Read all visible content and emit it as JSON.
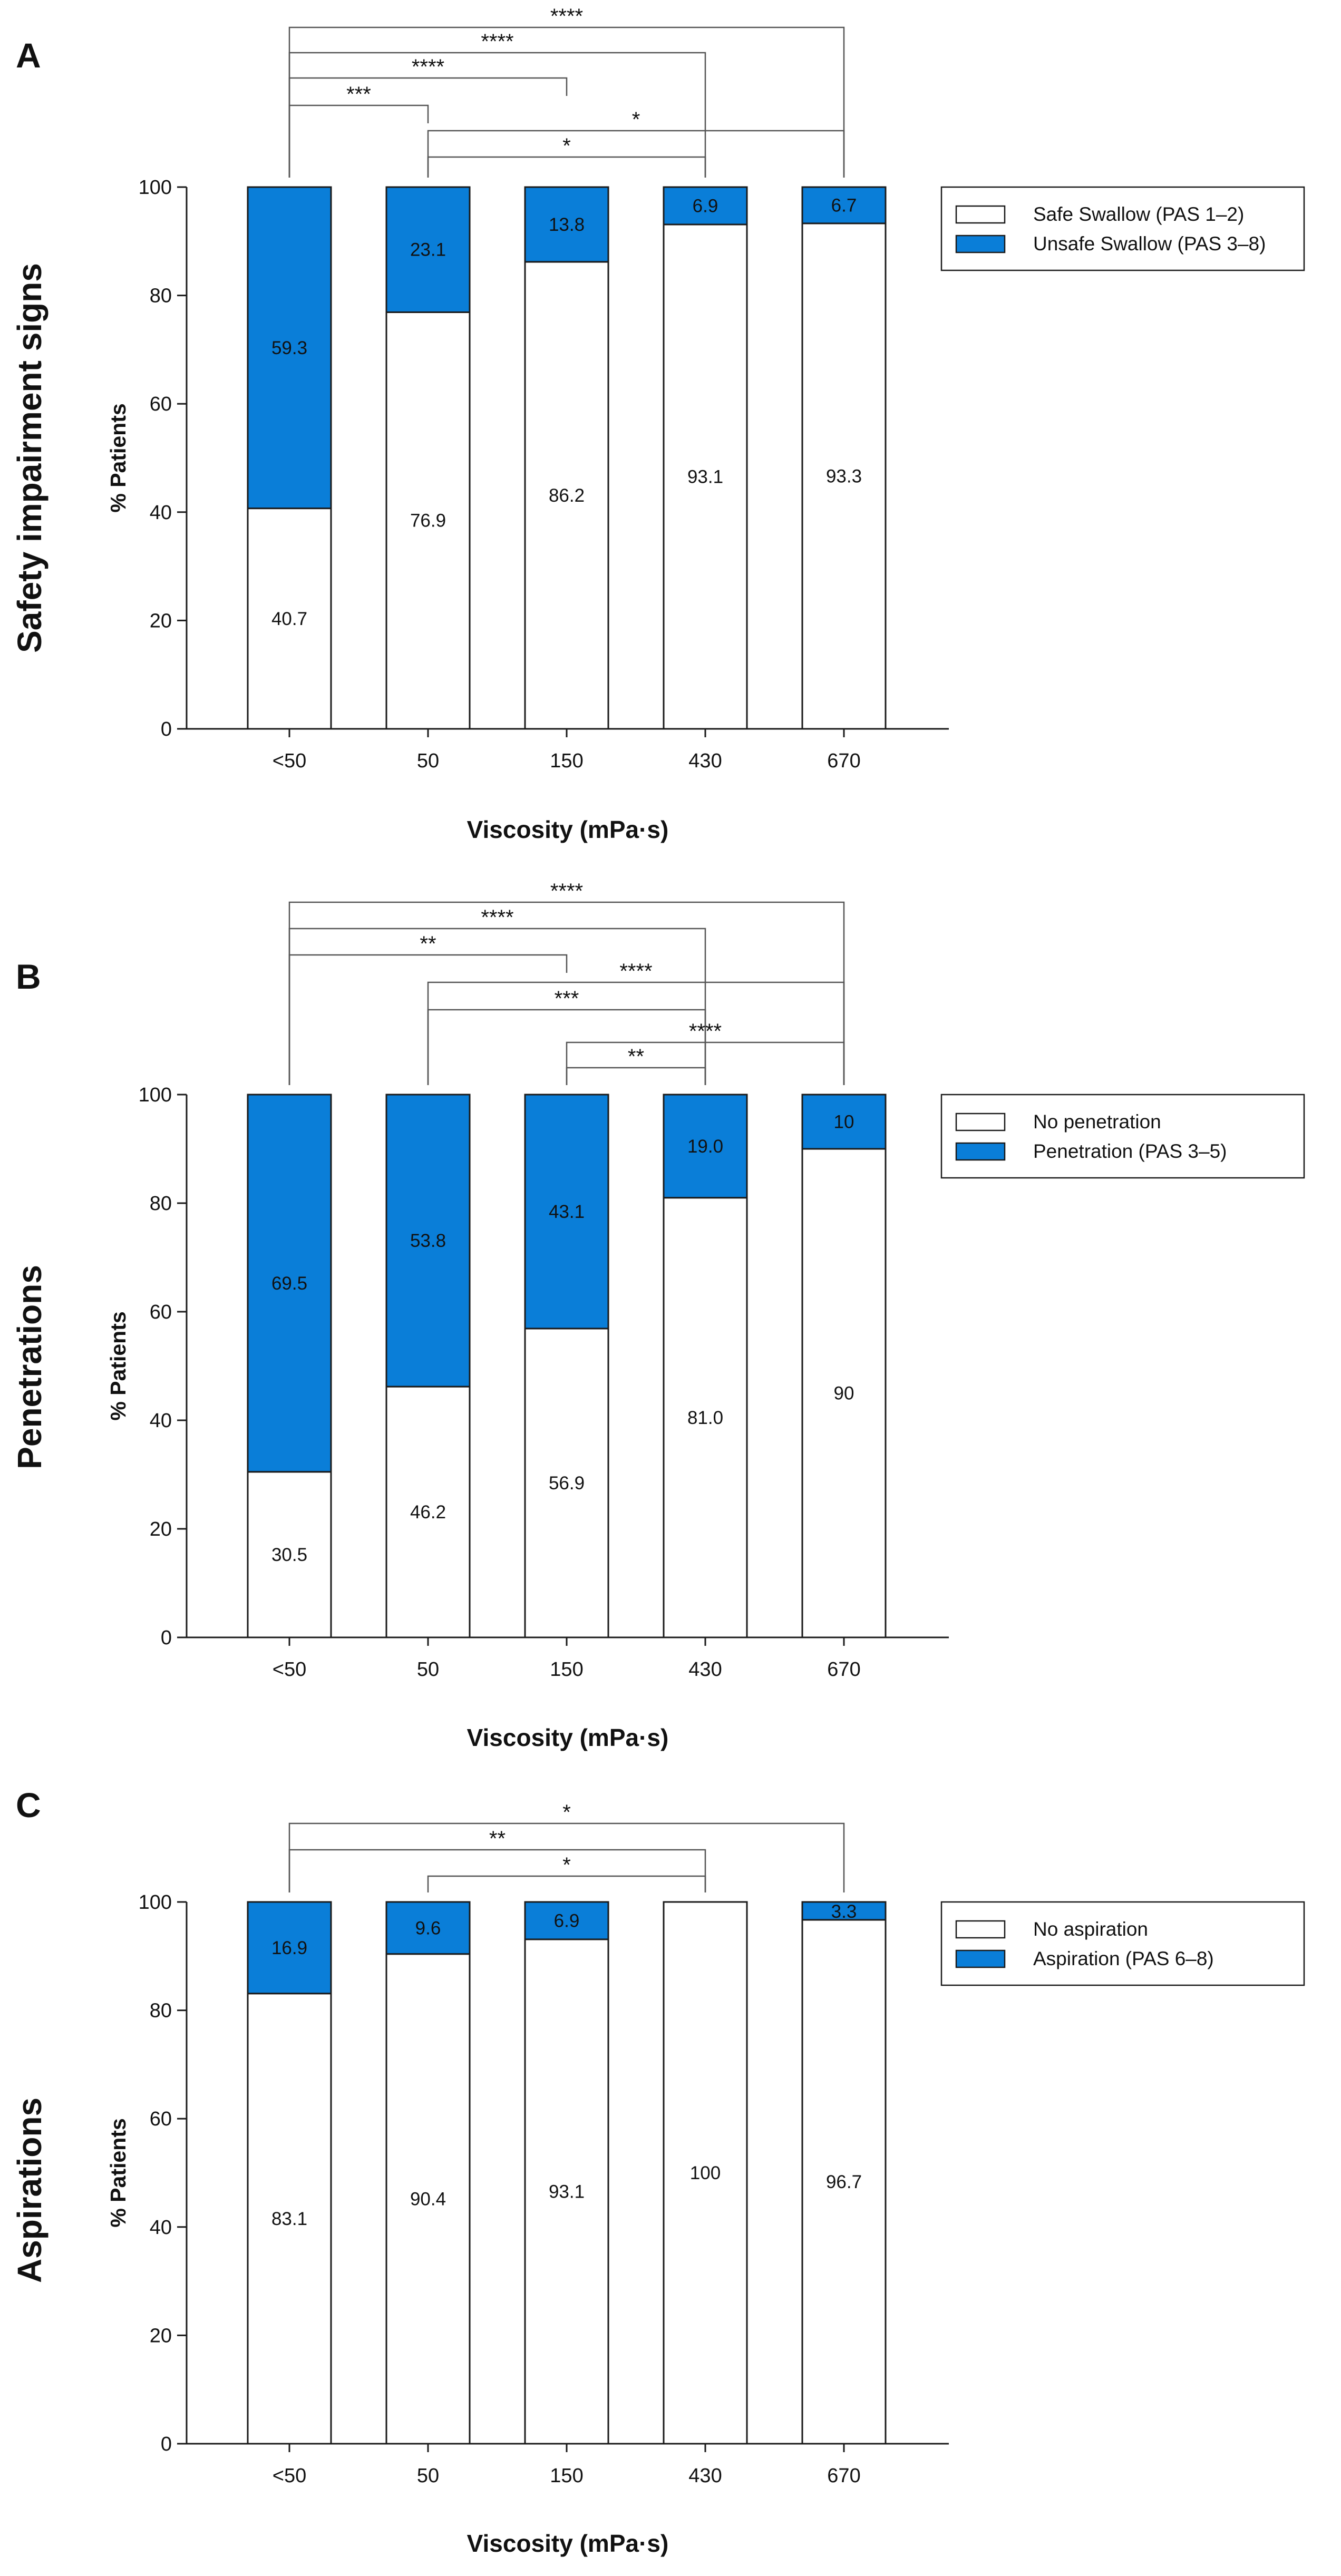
{
  "colors": {
    "safe": "#ffffff",
    "unsafe": "#0a7ed8",
    "outline": "#1a1a1a",
    "bracket": "#555555"
  },
  "chart_data": [
    {
      "type": "bar",
      "stacked": true,
      "panel": "A",
      "row_label": "Safety impairment signs",
      "xlabel": "Viscosity (mPa·s)",
      "ylabel": "% Patients",
      "ylim": [
        0,
        100
      ],
      "yticks": [
        0,
        20,
        40,
        60,
        80,
        100
      ],
      "categories": [
        "<50",
        "50",
        "150",
        "430",
        "670"
      ],
      "series": [
        {
          "name": "Safe Swallow (PAS 1–2)",
          "values": [
            40.7,
            76.9,
            86.2,
            93.1,
            93.3
          ],
          "labels": [
            "40.7",
            "76.9",
            "86.2",
            "93.1",
            "93.3"
          ]
        },
        {
          "name": "Unsafe Swallow (PAS 3–8)",
          "values": [
            59.3,
            23.1,
            13.8,
            6.9,
            6.7
          ],
          "labels": [
            "59.3",
            "23.1",
            "13.8",
            "6.9",
            "6.7"
          ]
        }
      ],
      "legend": "right",
      "comparisons": [
        {
          "from": 0,
          "to": 4,
          "stars": "****"
        },
        {
          "from": 0,
          "to": 3,
          "stars": "****"
        },
        {
          "from": 0,
          "to": 2,
          "stars": "****"
        },
        {
          "from": 0,
          "to": 1,
          "stars": "***"
        },
        {
          "from": 1,
          "to": 4,
          "stars": "*"
        },
        {
          "from": 1,
          "to": 3,
          "stars": "*"
        }
      ]
    },
    {
      "type": "bar",
      "stacked": true,
      "panel": "B",
      "row_label": "Penetrations",
      "xlabel": "Viscosity (mPa·s)",
      "ylabel": "% Patients",
      "ylim": [
        0,
        100
      ],
      "yticks": [
        0,
        20,
        40,
        60,
        80,
        100
      ],
      "categories": [
        "<50",
        "50",
        "150",
        "430",
        "670"
      ],
      "series": [
        {
          "name": "No penetration",
          "values": [
            30.5,
            46.2,
            56.9,
            81.0,
            90
          ],
          "labels": [
            "30.5",
            "46.2",
            "56.9",
            "81.0",
            "90"
          ]
        },
        {
          "name": "Penetration (PAS 3–5)",
          "values": [
            69.5,
            53.8,
            43.1,
            19.0,
            10
          ],
          "labels": [
            "69.5",
            "53.8",
            "43.1",
            "19.0",
            "10"
          ]
        }
      ],
      "legend": "right",
      "comparisons": [
        {
          "from": 0,
          "to": 4,
          "stars": "****"
        },
        {
          "from": 0,
          "to": 3,
          "stars": "****"
        },
        {
          "from": 0,
          "to": 2,
          "stars": "**"
        },
        {
          "from": 1,
          "to": 4,
          "stars": "****"
        },
        {
          "from": 1,
          "to": 3,
          "stars": "***"
        },
        {
          "from": 2,
          "to": 4,
          "stars": "****"
        },
        {
          "from": 2,
          "to": 3,
          "stars": "**"
        }
      ]
    },
    {
      "type": "bar",
      "stacked": true,
      "panel": "C",
      "row_label": "Aspirations",
      "xlabel": "Viscosity (mPa·s)",
      "ylabel": "% Patients",
      "ylim": [
        0,
        100
      ],
      "yticks": [
        0,
        20,
        40,
        60,
        80,
        100
      ],
      "categories": [
        "<50",
        "50",
        "150",
        "430",
        "670"
      ],
      "series": [
        {
          "name": "No aspiration",
          "values": [
            83.1,
            90.4,
            93.1,
            100,
            96.7
          ],
          "labels": [
            "83.1",
            "90.4",
            "93.1",
            "100",
            "96.7"
          ]
        },
        {
          "name": "Aspiration (PAS 6–8)",
          "values": [
            16.9,
            9.6,
            6.9,
            0,
            3.3
          ],
          "labels": [
            "16.9",
            "9.6",
            "6.9",
            "",
            "3.3"
          ]
        }
      ],
      "legend": "right",
      "comparisons": [
        {
          "from": 0,
          "to": 4,
          "stars": "*"
        },
        {
          "from": 0,
          "to": 3,
          "stars": "**"
        },
        {
          "from": 1,
          "to": 3,
          "stars": "*"
        }
      ]
    }
  ]
}
